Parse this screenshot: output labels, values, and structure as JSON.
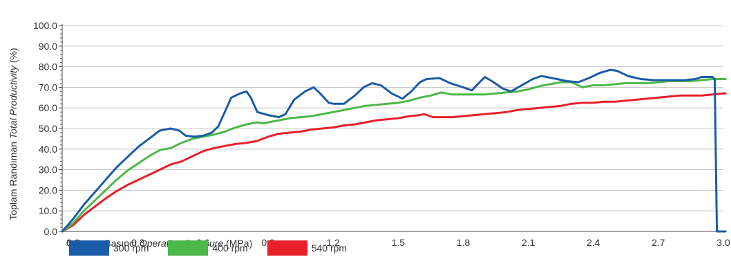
{
  "chart_data": {
    "type": "line",
    "ylabel": {
      "tr": "Toplam Randıman",
      "en": "Total Productivity",
      "unit": "(%)"
    },
    "xlabel": {
      "tr": "Çalışma Basıncı",
      "en": "Operating Pressure",
      "unit": "(MPa)"
    },
    "xlim": [
      -0.05,
      3.0
    ],
    "ylim": [
      0,
      100
    ],
    "x_ticks": [
      "0.0",
      "0.3",
      "0.6",
      "0.9",
      "1.2",
      "1.5",
      "1.8",
      "2.1",
      "2.4",
      "2.7",
      "3.0"
    ],
    "x_tick_values": [
      0.0,
      0.3,
      0.6,
      0.9,
      1.2,
      1.5,
      1.8,
      2.1,
      2.4,
      2.7,
      3.0
    ],
    "y_ticks": [
      "0.0",
      "10.0",
      "20.0",
      "30.0",
      "40.0",
      "50.0",
      "60.0",
      "70.0",
      "80.0",
      "90.0",
      "100.0"
    ],
    "y_tick_values": [
      0,
      10,
      20,
      30,
      40,
      50,
      60,
      70,
      80,
      90,
      100
    ],
    "grid": "horizontal",
    "series": [
      {
        "name": "300 rpm",
        "color": "#1a5ca8",
        "points": [
          [
            -0.05,
            0
          ],
          [
            0.0,
            6
          ],
          [
            0.05,
            13
          ],
          [
            0.1,
            19
          ],
          [
            0.15,
            25
          ],
          [
            0.2,
            31
          ],
          [
            0.25,
            36
          ],
          [
            0.3,
            41
          ],
          [
            0.35,
            45
          ],
          [
            0.4,
            49
          ],
          [
            0.45,
            50
          ],
          [
            0.49,
            49
          ],
          [
            0.52,
            46.5
          ],
          [
            0.56,
            46
          ],
          [
            0.6,
            46.5
          ],
          [
            0.64,
            48
          ],
          [
            0.67,
            51
          ],
          [
            0.7,
            58
          ],
          [
            0.73,
            65
          ],
          [
            0.77,
            67
          ],
          [
            0.8,
            68
          ],
          [
            0.82,
            65
          ],
          [
            0.85,
            58
          ],
          [
            0.9,
            56.5
          ],
          [
            0.95,
            55.5
          ],
          [
            0.98,
            57
          ],
          [
            1.02,
            64
          ],
          [
            1.07,
            68
          ],
          [
            1.11,
            70
          ],
          [
            1.14,
            67
          ],
          [
            1.18,
            62.5
          ],
          [
            1.2,
            62
          ],
          [
            1.25,
            62
          ],
          [
            1.3,
            66
          ],
          [
            1.34,
            70
          ],
          [
            1.38,
            72
          ],
          [
            1.42,
            71
          ],
          [
            1.47,
            67
          ],
          [
            1.52,
            64.5
          ],
          [
            1.56,
            68
          ],
          [
            1.6,
            72.5
          ],
          [
            1.63,
            74
          ],
          [
            1.69,
            74.5
          ],
          [
            1.74,
            72
          ],
          [
            1.8,
            70
          ],
          [
            1.84,
            68.5
          ],
          [
            1.88,
            73
          ],
          [
            1.9,
            75
          ],
          [
            1.94,
            72.5
          ],
          [
            1.98,
            69.5
          ],
          [
            2.02,
            68
          ],
          [
            2.07,
            71
          ],
          [
            2.12,
            74
          ],
          [
            2.16,
            75.5
          ],
          [
            2.21,
            74.5
          ],
          [
            2.28,
            73
          ],
          [
            2.33,
            72.5
          ],
          [
            2.38,
            74.5
          ],
          [
            2.43,
            77
          ],
          [
            2.48,
            78.5
          ],
          [
            2.51,
            78
          ],
          [
            2.56,
            75.5
          ],
          [
            2.62,
            74
          ],
          [
            2.68,
            73.5
          ],
          [
            2.75,
            73.5
          ],
          [
            2.82,
            73.5
          ],
          [
            2.87,
            74
          ],
          [
            2.9,
            75
          ],
          [
            2.95,
            75
          ],
          [
            2.96,
            74
          ],
          [
            2.97,
            0
          ],
          [
            3.01,
            0
          ]
        ]
      },
      {
        "name": "400 rpm",
        "color": "#4cb848",
        "points": [
          [
            -0.05,
            0
          ],
          [
            0.0,
            4
          ],
          [
            0.05,
            10
          ],
          [
            0.1,
            15
          ],
          [
            0.15,
            20
          ],
          [
            0.2,
            25
          ],
          [
            0.25,
            29.5
          ],
          [
            0.3,
            33
          ],
          [
            0.35,
            36.5
          ],
          [
            0.4,
            39.5
          ],
          [
            0.45,
            40.5
          ],
          [
            0.5,
            43
          ],
          [
            0.55,
            45
          ],
          [
            0.6,
            46
          ],
          [
            0.65,
            47
          ],
          [
            0.7,
            48.5
          ],
          [
            0.75,
            50.5
          ],
          [
            0.8,
            52
          ],
          [
            0.85,
            53
          ],
          [
            0.88,
            52.5
          ],
          [
            0.9,
            53
          ],
          [
            0.95,
            54
          ],
          [
            1.0,
            55
          ],
          [
            1.05,
            55.5
          ],
          [
            1.1,
            56
          ],
          [
            1.15,
            57
          ],
          [
            1.2,
            58
          ],
          [
            1.25,
            59
          ],
          [
            1.3,
            60
          ],
          [
            1.35,
            61
          ],
          [
            1.4,
            61.5
          ],
          [
            1.45,
            62
          ],
          [
            1.5,
            62.5
          ],
          [
            1.55,
            63.5
          ],
          [
            1.6,
            65
          ],
          [
            1.65,
            66
          ],
          [
            1.7,
            67.5
          ],
          [
            1.75,
            66.5
          ],
          [
            1.8,
            66.5
          ],
          [
            1.85,
            66.5
          ],
          [
            1.9,
            66.5
          ],
          [
            1.95,
            67
          ],
          [
            2.0,
            67.5
          ],
          [
            2.05,
            68
          ],
          [
            2.1,
            69
          ],
          [
            2.15,
            70.5
          ],
          [
            2.2,
            71.5
          ],
          [
            2.25,
            72.5
          ],
          [
            2.3,
            72.5
          ],
          [
            2.35,
            70
          ],
          [
            2.4,
            71
          ],
          [
            2.45,
            71
          ],
          [
            2.5,
            71.5
          ],
          [
            2.55,
            72
          ],
          [
            2.6,
            72
          ],
          [
            2.65,
            72
          ],
          [
            2.7,
            72.5
          ],
          [
            2.75,
            73
          ],
          [
            2.8,
            73
          ],
          [
            2.85,
            73
          ],
          [
            2.9,
            73.5
          ],
          [
            2.95,
            74
          ],
          [
            3.0,
            74
          ],
          [
            3.01,
            74
          ]
        ]
      },
      {
        "name": "540 rpm",
        "color": "#e8202a",
        "points": [
          [
            -0.05,
            0
          ],
          [
            0.0,
            3
          ],
          [
            0.05,
            8
          ],
          [
            0.1,
            12
          ],
          [
            0.15,
            16
          ],
          [
            0.2,
            19.5
          ],
          [
            0.25,
            22.5
          ],
          [
            0.3,
            25
          ],
          [
            0.35,
            27.5
          ],
          [
            0.4,
            30
          ],
          [
            0.45,
            32.5
          ],
          [
            0.5,
            34
          ],
          [
            0.55,
            36.5
          ],
          [
            0.6,
            39
          ],
          [
            0.65,
            40.5
          ],
          [
            0.7,
            41.5
          ],
          [
            0.75,
            42.5
          ],
          [
            0.8,
            43
          ],
          [
            0.85,
            44
          ],
          [
            0.9,
            46
          ],
          [
            0.95,
            47.5
          ],
          [
            1.0,
            48
          ],
          [
            1.05,
            48.5
          ],
          [
            1.1,
            49.5
          ],
          [
            1.15,
            50
          ],
          [
            1.2,
            50.5
          ],
          [
            1.25,
            51.5
          ],
          [
            1.3,
            52
          ],
          [
            1.35,
            53
          ],
          [
            1.4,
            54
          ],
          [
            1.45,
            54.5
          ],
          [
            1.5,
            55
          ],
          [
            1.55,
            56
          ],
          [
            1.6,
            56.5
          ],
          [
            1.62,
            57
          ],
          [
            1.66,
            55.5
          ],
          [
            1.7,
            55.5
          ],
          [
            1.75,
            55.5
          ],
          [
            1.8,
            56
          ],
          [
            1.85,
            56.5
          ],
          [
            1.9,
            57
          ],
          [
            1.95,
            57.5
          ],
          [
            2.0,
            58
          ],
          [
            2.05,
            59
          ],
          [
            2.1,
            59.5
          ],
          [
            2.15,
            60
          ],
          [
            2.2,
            60.5
          ],
          [
            2.25,
            61
          ],
          [
            2.3,
            62
          ],
          [
            2.35,
            62.5
          ],
          [
            2.4,
            62.5
          ],
          [
            2.45,
            63
          ],
          [
            2.5,
            63
          ],
          [
            2.55,
            63.5
          ],
          [
            2.6,
            64
          ],
          [
            2.65,
            64.5
          ],
          [
            2.7,
            65
          ],
          [
            2.75,
            65.5
          ],
          [
            2.8,
            66
          ],
          [
            2.85,
            66
          ],
          [
            2.9,
            66
          ],
          [
            2.95,
            66.5
          ],
          [
            3.0,
            67
          ],
          [
            3.01,
            67
          ]
        ]
      }
    ]
  }
}
